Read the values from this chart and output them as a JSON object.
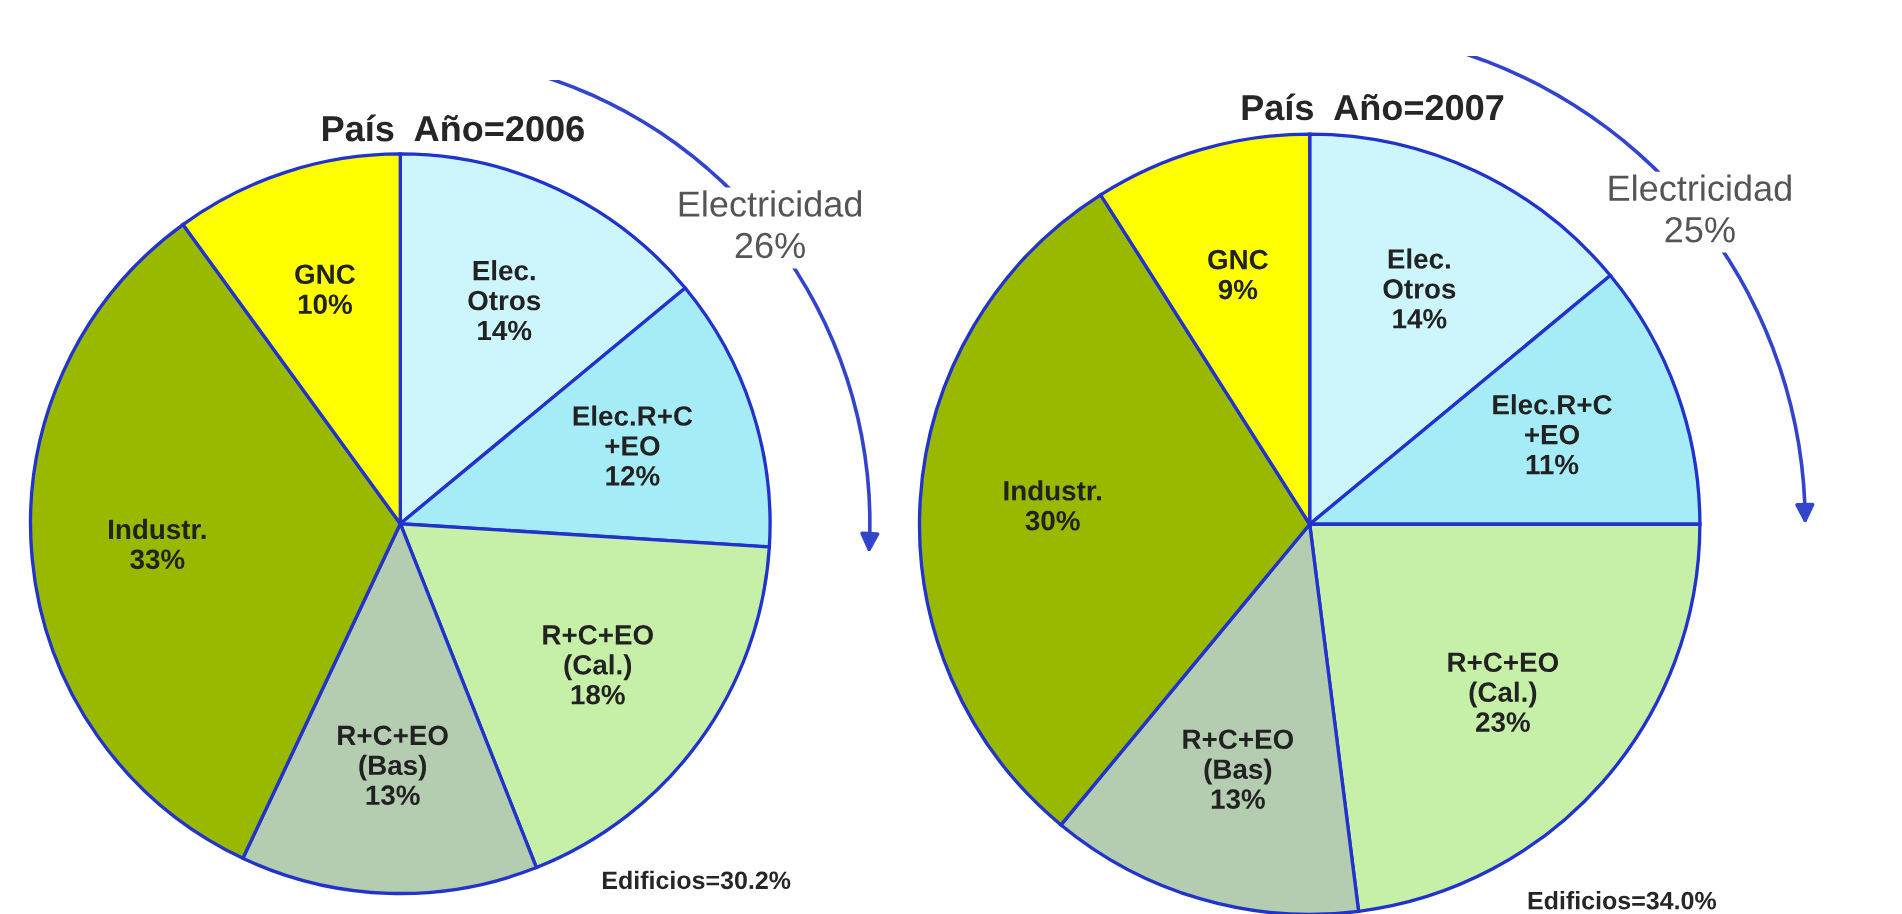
{
  "chart_data": [
    {
      "type": "pie",
      "title": "País  Año=2006",
      "categories": [
        "Elec.\nOtros",
        "Elec.R+C\n+EO",
        "R+C+EO\n(Cal.)",
        "R+C+EO\n(Bas)",
        "Industr.",
        "GNC"
      ],
      "values": [
        14,
        12,
        18,
        13,
        33,
        10
      ],
      "value_labels": [
        "14%",
        "12%",
        "18%",
        "13%",
        "33%",
        "10%"
      ],
      "colors": [
        "#ccf6fc",
        "#a6ecf6",
        "#c6efa8",
        "#b4ccb0",
        "#99b800",
        "#ffff00"
      ],
      "annotations": [
        "Electricidad\n26%",
        "Edificios=30.2%"
      ]
    },
    {
      "type": "pie",
      "title": "País  Año=2007",
      "categories": [
        "Elec.\nOtros",
        "Elec.R+C\n+EO",
        "R+C+EO\n(Cal.)",
        "R+C+EO\n(Bas)",
        "Industr.",
        "GNC"
      ],
      "values": [
        14,
        11,
        23,
        13,
        30,
        9
      ],
      "value_labels": [
        "14%",
        "11%",
        "23%",
        "13%",
        "30%",
        "9%"
      ],
      "colors": [
        "#ccf6fc",
        "#a6ecf6",
        "#c6efa8",
        "#b4ccb0",
        "#99b800",
        "#ffff00"
      ],
      "annotations": [
        "Electricidad\n25%",
        "Edificios=34.0%"
      ]
    }
  ]
}
